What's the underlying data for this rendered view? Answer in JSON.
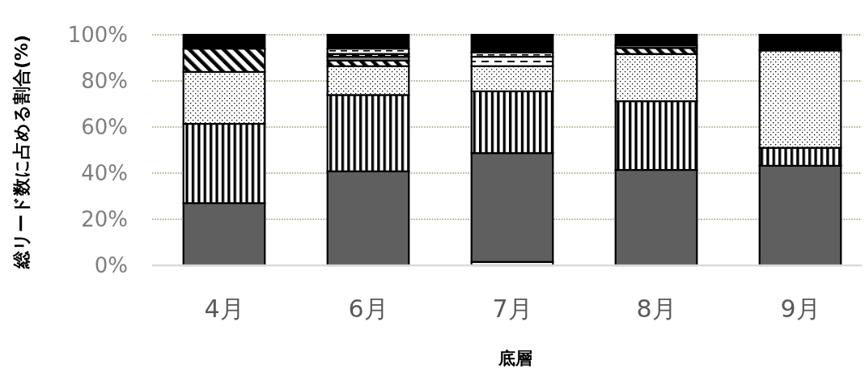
{
  "chart_data": {
    "type": "bar",
    "stacked": true,
    "categories": [
      "4月",
      "6月",
      "7月",
      "8月",
      "9月"
    ],
    "xlabel": "底層",
    "ylabel": "総リード数に占める割合(%)",
    "ylim": [
      0,
      100
    ],
    "yticks": [
      {
        "value": 0,
        "label": "0%"
      },
      {
        "value": 20,
        "label": "20%"
      },
      {
        "value": 40,
        "label": "40%"
      },
      {
        "value": 60,
        "label": "60%"
      },
      {
        "value": 80,
        "label": "80%"
      },
      {
        "value": 100,
        "label": "100%"
      }
    ],
    "grid": "y",
    "series": [
      {
        "color": "#ffffff",
        "values": [
          0,
          0,
          1.5,
          0,
          0
        ]
      },
      {
        "color": "#5f5f5f",
        "values": [
          27,
          40.8,
          47.2,
          41.4,
          43.2
        ]
      },
      {
        "color": "#000000",
        "values": [
          34.4,
          33.1,
          26.8,
          29.8,
          7.8
        ]
      },
      {
        "color": "#000000",
        "values": [
          22.5,
          12.5,
          10.9,
          20.5,
          42.2
        ]
      },
      {
        "color": "#000000",
        "values": [
          10.1,
          2.4,
          0,
          2.6,
          0
        ]
      },
      {
        "color": "#8c8c8c",
        "values": [
          0,
          1.7,
          0,
          1.1,
          0
        ]
      },
      {
        "color": "#000000",
        "values": [
          0,
          1.2,
          4.1,
          0,
          0
        ]
      },
      {
        "color": "#000000",
        "values": [
          0,
          2.3,
          1.8,
          0,
          0
        ]
      },
      {
        "color": "#000000",
        "values": [
          6,
          6,
          7.7,
          4.6,
          6.8
        ]
      }
    ]
  }
}
